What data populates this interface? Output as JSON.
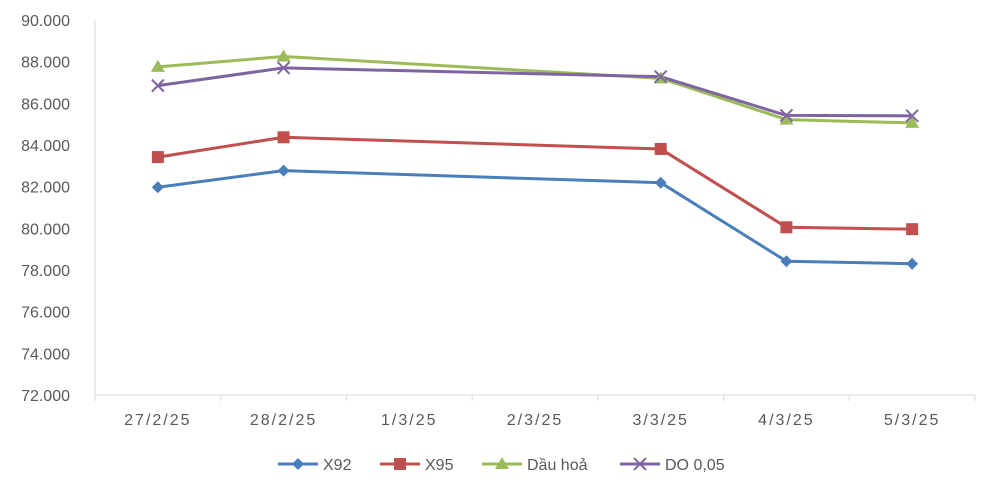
{
  "chart_data": {
    "type": "line",
    "categories": [
      "27/2/25",
      "28/2/25",
      "1/3/25",
      "2/3/25",
      "3/3/25",
      "4/3/25",
      "5/3/25"
    ],
    "ylim": [
      72000,
      90000
    ],
    "yticks": [
      "72.000",
      "74.000",
      "76.000",
      "78.000",
      "80.000",
      "82.000",
      "84.000",
      "86.000",
      "88.000",
      "90.000"
    ],
    "grid": false,
    "legend_position": "bottom",
    "series": [
      {
        "name": "X92",
        "color": "#4a7ebb",
        "marker": "diamond",
        "points": [
          {
            "x": "27/2/25",
            "y": 81970
          },
          {
            "x": "28/2/25",
            "y": 82770
          },
          {
            "x": "3/3/25",
            "y": 82190
          },
          {
            "x": "4/3/25",
            "y": 78420
          },
          {
            "x": "5/3/25",
            "y": 78300
          }
        ]
      },
      {
        "name": "X95",
        "color": "#c0504d",
        "marker": "square",
        "points": [
          {
            "x": "27/2/25",
            "y": 83420
          },
          {
            "x": "28/2/25",
            "y": 84370
          },
          {
            "x": "3/3/25",
            "y": 83810
          },
          {
            "x": "4/3/25",
            "y": 80050
          },
          {
            "x": "5/3/25",
            "y": 79960
          }
        ]
      },
      {
        "name": "Dầu hoả",
        "color": "#9bbb59",
        "marker": "triangle",
        "points": [
          {
            "x": "27/2/25",
            "y": 87750
          },
          {
            "x": "28/2/25",
            "y": 88250
          },
          {
            "x": "3/3/25",
            "y": 87200
          },
          {
            "x": "4/3/25",
            "y": 85220
          },
          {
            "x": "5/3/25",
            "y": 85060
          }
        ]
      },
      {
        "name": "DO 0,05",
        "color": "#8064a2",
        "marker": "x",
        "points": [
          {
            "x": "27/2/25",
            "y": 86850
          },
          {
            "x": "28/2/25",
            "y": 87700
          },
          {
            "x": "3/3/25",
            "y": 87280
          },
          {
            "x": "4/3/25",
            "y": 85420
          },
          {
            "x": "5/3/25",
            "y": 85400
          }
        ]
      }
    ]
  }
}
